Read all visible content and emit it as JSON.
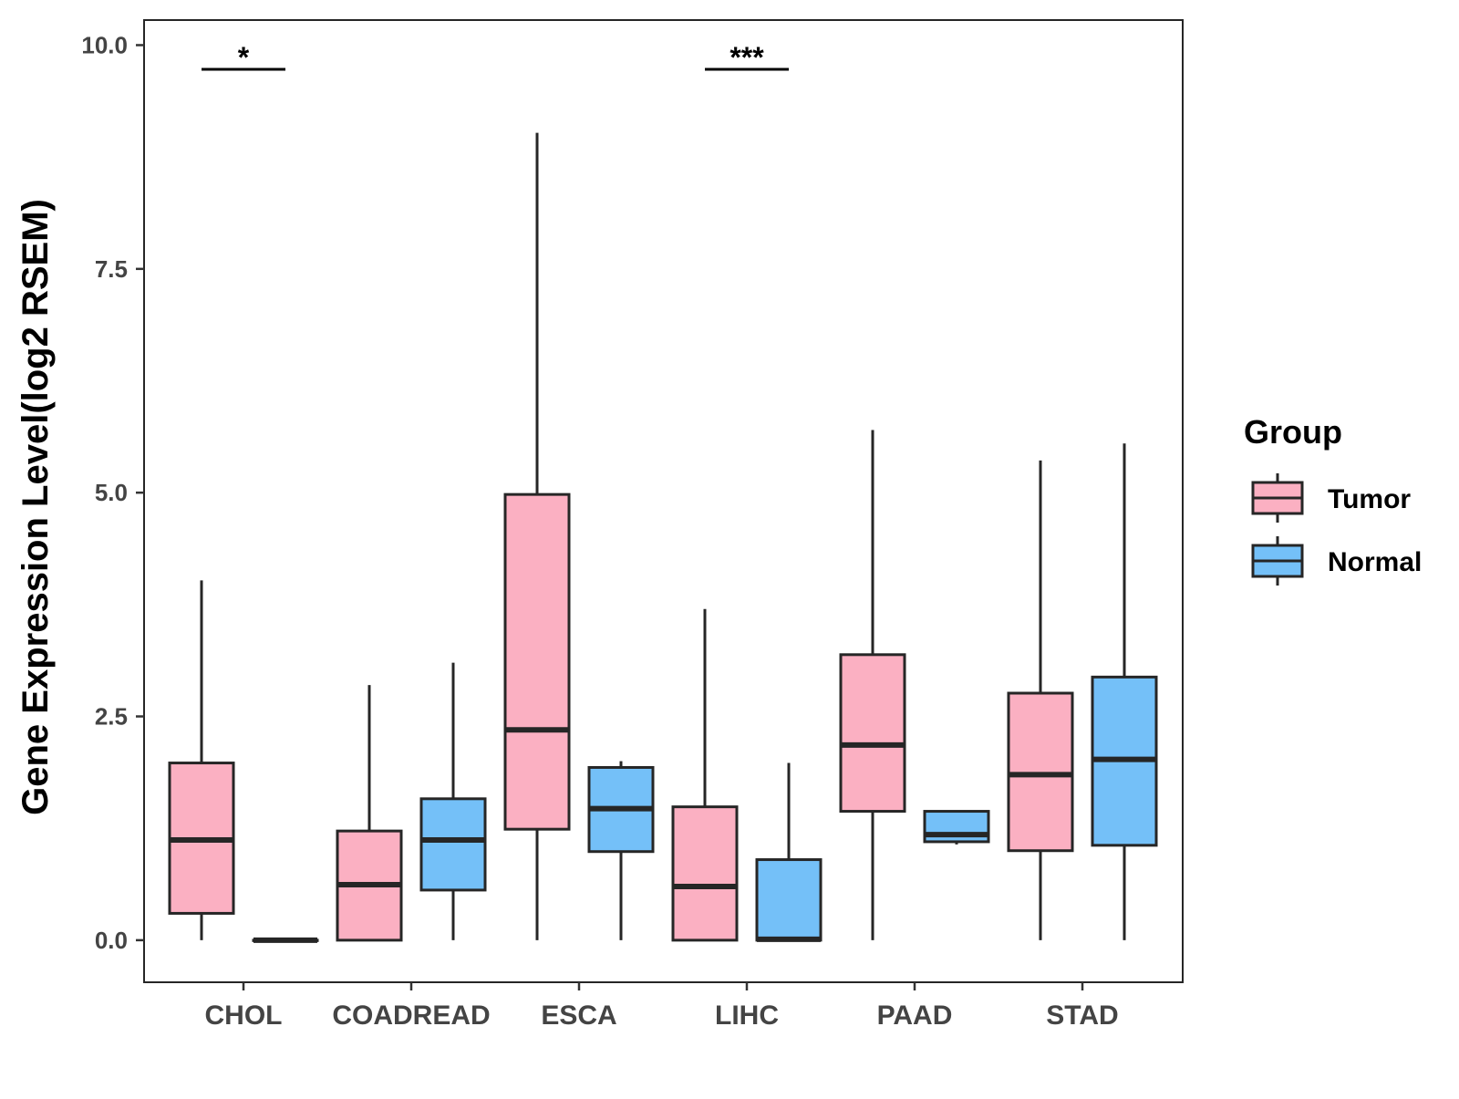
{
  "chart_data": {
    "type": "boxplot",
    "title": "",
    "xlabel": "",
    "ylabel": "Gene Expression Level(log2 RSEM)",
    "ylim": [
      -0.47,
      10.28
    ],
    "yticks": [
      {
        "value": 0,
        "label": "0.0"
      },
      {
        "value": 2.5,
        "label": "2.5"
      },
      {
        "value": 5,
        "label": "5.0"
      },
      {
        "value": 7.5,
        "label": "7.5"
      },
      {
        "value": 10,
        "label": "10.0"
      }
    ],
    "categories": [
      "CHOL",
      "COADREAD",
      "ESCA",
      "LIHC",
      "PAAD",
      "STAD"
    ],
    "legend": {
      "title": "Group",
      "position": "right",
      "entries": [
        {
          "name": "Tumor",
          "color": "#FBB0C2"
        },
        {
          "name": "Normal",
          "color": "#74C0F8"
        }
      ]
    },
    "series": [
      {
        "name": "Tumor",
        "color": "#FBB0C2",
        "boxes": [
          {
            "category": "CHOL",
            "min": 0.0,
            "q1": 0.3,
            "median": 1.12,
            "q3": 1.98,
            "max": 4.02
          },
          {
            "category": "COADREAD",
            "min": 0.0,
            "q1": 0.0,
            "median": 0.62,
            "q3": 1.22,
            "max": 2.85
          },
          {
            "category": "ESCA",
            "min": 0.0,
            "q1": 1.24,
            "median": 2.35,
            "q3": 4.98,
            "max": 9.02
          },
          {
            "category": "LIHC",
            "min": 0.0,
            "q1": 0.0,
            "median": 0.6,
            "q3": 1.49,
            "max": 3.7
          },
          {
            "category": "PAAD",
            "min": 0.0,
            "q1": 1.44,
            "median": 2.18,
            "q3": 3.19,
            "max": 5.7
          },
          {
            "category": "STAD",
            "min": 0.0,
            "q1": 1.0,
            "median": 1.85,
            "q3": 2.76,
            "max": 5.36
          }
        ]
      },
      {
        "name": "Normal",
        "color": "#74C0F8",
        "boxes": [
          {
            "category": "CHOL",
            "min": 0.0,
            "q1": 0.0,
            "median": 0.0,
            "q3": 0.0,
            "max": 0.0
          },
          {
            "category": "COADREAD",
            "min": 0.0,
            "q1": 0.56,
            "median": 1.12,
            "q3": 1.58,
            "max": 3.1
          },
          {
            "category": "ESCA",
            "min": 0.0,
            "q1": 0.99,
            "median": 1.47,
            "q3": 1.93,
            "max": 2.0
          },
          {
            "category": "LIHC",
            "min": 0.0,
            "q1": 0.0,
            "median": 0.01,
            "q3": 0.9,
            "max": 1.98
          },
          {
            "category": "PAAD",
            "min": 1.07,
            "q1": 1.1,
            "median": 1.18,
            "q3": 1.44,
            "max": 1.44
          },
          {
            "category": "STAD",
            "min": 0.0,
            "q1": 1.06,
            "median": 2.02,
            "q3": 2.94,
            "max": 5.55
          }
        ]
      }
    ],
    "significance": [
      {
        "category": "CHOL",
        "label": "*",
        "y": 9.73
      },
      {
        "category": "LIHC",
        "label": "***",
        "y": 9.73
      }
    ]
  }
}
